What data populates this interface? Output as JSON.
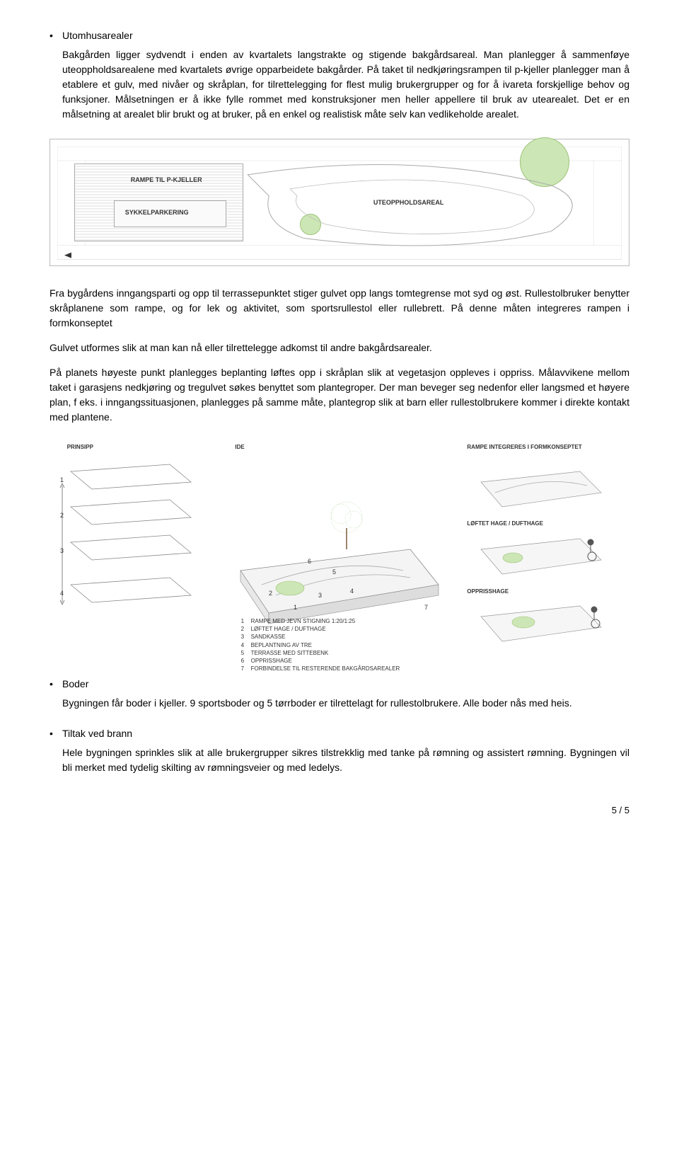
{
  "colors": {
    "text": "#000000",
    "line_light": "#cccccc",
    "line_mid": "#aaaaaa",
    "green_fill": "#cde6b5",
    "green_stroke": "#9cc47a",
    "tree_green": "#8fbf6f",
    "bg": "#ffffff"
  },
  "sec_utomhus": {
    "bullet": "Utomhusarealer",
    "p1": "Bakgården ligger sydvendt i enden av kvartalets langstrakte og stigende bakgårdsareal. Man planlegger å sammenføye uteoppholdsarealene med kvartalets øvrige opparbeidete bakgårder. På taket til nedkjøringsrampen til p-kjeller planlegger man å etablere et gulv, med nivåer og skråplan, for tilrettelegging for flest mulig brukergrupper og for å ivareta forskjellige behov og funksjoner. Målsetningen er å ikke fylle rommet med konstruksjoner men heller appellere til bruk av utearealet. Det er en målsetning at arealet blir brukt og at bruker, på en enkel og realistisk måte selv kan vedlikeholde arealet."
  },
  "fig1": {
    "label_rampe": "RAMPE TIL P-KJELLER",
    "label_sykkel": "SYKKELPARKERING",
    "label_ute": "UTEOPPHOLDSAREAL"
  },
  "mid": {
    "p1": "Fra bygårdens inngangsparti og opp til terrassepunktet stiger gulvet opp langs tomtegrense mot syd og øst. Rullestolbruker benytter skråplanene som rampe, og for lek og aktivitet, som sportsrullestol eller rullebrett. På denne måten integreres rampen i formkonseptet",
    "p2": "Gulvet utformes slik at man kan nå eller tilrettelegge adkomst til andre bakgårdsarealer.",
    "p3": "På planets høyeste punkt planlegges beplanting løftes opp i skråplan slik at vegetasjon oppleves i oppriss. Målavvikene mellom taket i garasjens nedkjøring og tregulvet søkes benyttet som plantegroper.  Der man beveger seg nedenfor eller langsmed et høyere plan, f eks. i inngangssituasjonen, planlegges på samme måte, plantegrop slik at barn eller rullestolbrukere kommer i direkte kontakt med plantene."
  },
  "fig2": {
    "col1_title": "PRINSIPP",
    "col2_title": "IDE",
    "col3_title": "RAMPE INTEGRERES I FORMKONSEPTET",
    "col3_sub1": "LØFTET HAGE / DUFTHAGE",
    "col3_sub2": "OPPRISSHAGE",
    "layers": [
      "1",
      "2",
      "3",
      "4"
    ],
    "legend": [
      {
        "n": "1",
        "t": "RAMPE MED JEVN STIGNING 1:20/1:25"
      },
      {
        "n": "2",
        "t": "LØFTET HAGE / DUFTHAGE"
      },
      {
        "n": "3",
        "t": "SANDKASSE"
      },
      {
        "n": "4",
        "t": "BEPLANTNING AV TRE"
      },
      {
        "n": "5",
        "t": "TERRASSE MED SITTEBENK"
      },
      {
        "n": "6",
        "t": "OPPRISSHAGE"
      },
      {
        "n": "7",
        "t": "FORBINDELSE TIL RESTERENDE BAKGÅRDSAREALER"
      }
    ],
    "center_nums": [
      "1",
      "2",
      "3",
      "4",
      "5",
      "6",
      "7"
    ]
  },
  "boder": {
    "bullet": "Boder",
    "p": "Bygningen får boder i kjeller. 9 sportsboder og 5 tørrboder er tilrettelagt for rullestolbrukere. Alle boder nås med heis."
  },
  "brann": {
    "bullet": "Tiltak ved brann",
    "p": "Hele bygningen sprinkles slik at alle brukergrupper sikres tilstrekklig med tanke på rømning og assistert rømning. Bygningen vil bli merket med tydelig skilting av rømningsveier og med ledelys."
  },
  "footer": "5 / 5"
}
